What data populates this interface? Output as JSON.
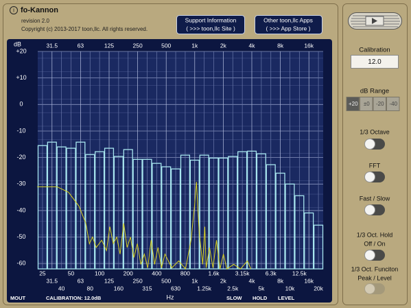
{
  "header": {
    "title": "fo-Kannon",
    "revision": "revision 2.0",
    "copyright": "Copyright (c) 2013-2017 toon,llc. All rights reserved."
  },
  "buttons": [
    {
      "line1": "Support Information",
      "line2": "( >>> toon,llc Site )"
    },
    {
      "line1": "Other toon,llc Apps",
      "line2": "( >>> App Store )"
    }
  ],
  "chart_data": {
    "type": "bar",
    "y_label": "dB",
    "x_label": "Hz",
    "categories": [
      "25",
      "31.5",
      "40",
      "50",
      "63",
      "80",
      "100",
      "125",
      "160",
      "200",
      "250",
      "315",
      "400",
      "500",
      "630",
      "800",
      "1k",
      "1.25k",
      "1.6k",
      "2k",
      "2.5k",
      "3.15k",
      "4k",
      "5k",
      "6.3k",
      "8k",
      "10k",
      "12.5k",
      "16k",
      "20k"
    ],
    "top_labels": [
      "31.5",
      "63",
      "125",
      "250",
      "500",
      "1k",
      "2k",
      "4k",
      "8k",
      "16k"
    ],
    "values": [
      -15.5,
      -14.2,
      -16,
      -16.5,
      -14.2,
      -18.9,
      -17.8,
      -16.5,
      -19.6,
      -17,
      -20.7,
      -20.7,
      -22.2,
      -23.5,
      -24.3,
      -19.1,
      -21,
      -19.1,
      -20.2,
      -20.2,
      -19.6,
      -17.8,
      -17.6,
      -18.6,
      -22.7,
      -25.9,
      -30,
      -34.4,
      -40.9,
      -45.5
    ],
    "color": "#a8e6ef",
    "ylim": [
      -62,
      20
    ],
    "yticks": [
      {
        "value": 20,
        "label": "+20"
      },
      {
        "value": 10,
        "label": "+10"
      },
      0,
      -10,
      -20,
      -30,
      -40,
      -50,
      -60
    ],
    "xlim": [
      22.3,
      22449
    ],
    "log_x": true,
    "grid": true,
    "line": {
      "color": "#d9d21e",
      "x": [
        22,
        35.5,
        47,
        60.5,
        71.5,
        78,
        84,
        92,
        105,
        118,
        128,
        139,
        151,
        164,
        179,
        194,
        211,
        229,
        249,
        271,
        295,
        320,
        348,
        378,
        411,
        447,
        486,
        574,
        678,
        800,
        914,
        994,
        1043,
        1116,
        1213,
        1276,
        1318,
        1432,
        1556,
        1694,
        1842,
        2002,
        2175,
        2569,
        3033,
        3583,
        3893
      ],
      "values": [
        -31,
        -31,
        -33.1,
        -38.3,
        -44.8,
        -52.5,
        -50,
        -53.9,
        -51.2,
        -55.1,
        -46.1,
        -52.5,
        -50,
        -56.4,
        -44.8,
        -53.9,
        -50,
        -57.7,
        -52.5,
        -60.3,
        -56.4,
        -61.6,
        -51.2,
        -60.3,
        -53.9,
        -61.6,
        -56.4,
        -61.6,
        -59,
        -62,
        -51.2,
        -38.3,
        -29.2,
        -48.6,
        -60.3,
        -46.1,
        -61.6,
        -53.9,
        -61.6,
        -51.2,
        -62,
        -56.4,
        -62,
        -60.3,
        -62,
        -59,
        -62
      ]
    }
  },
  "status": [
    "MOUT",
    "CALIBRATION: 12.0dB",
    "SLOW",
    "HOLD",
    "LEVEL"
  ],
  "sidebar": {
    "calibration_label": "Calibration",
    "calibration_value": "12.0",
    "range_label": "dB Range",
    "range_options": [
      "+20",
      "±0",
      "-20",
      "-40"
    ],
    "toggles": [
      [
        "1/3 Octave"
      ],
      [
        "FFT"
      ],
      [
        "Fast / Slow"
      ],
      [
        "1/3 Oct. Hold",
        "Off / On"
      ],
      [
        "1/3 Oct. Funciton",
        "Peak / Level"
      ]
    ]
  }
}
